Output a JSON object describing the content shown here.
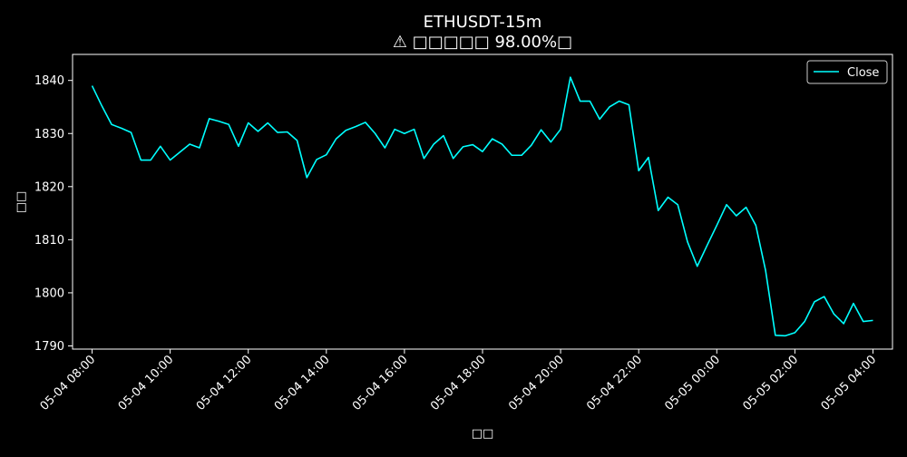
{
  "chart_data": {
    "type": "line",
    "title": "ETHUSDT-15m",
    "subtitle": "⚠ □□□□□ 98.00%□",
    "xlabel": "□□",
    "ylabel": "□□",
    "x_ticks": [
      "05-04 08:00",
      "05-04 10:00",
      "05-04 12:00",
      "05-04 14:00",
      "05-04 16:00",
      "05-04 18:00",
      "05-04 20:00",
      "05-04 22:00",
      "05-05 00:00",
      "05-05 02:00",
      "05-05 04:00"
    ],
    "y_ticks": [
      1790,
      1800,
      1810,
      1820,
      1830,
      1840
    ],
    "xlim_hours": [
      -0.5,
      20.5
    ],
    "ylim": [
      1789.4,
      1844.9
    ],
    "legend": "upper right",
    "grid": false,
    "colors": {
      "background": "#000000",
      "line": "#00ffff",
      "text": "#ffffff"
    },
    "series": [
      {
        "name": "Close",
        "color": "#00ffff",
        "x_start": "05-04 08:00",
        "x_step_minutes": 15,
        "values": [
          1839.0,
          1835.2,
          1831.7,
          1831.0,
          1830.2,
          1825.0,
          1825.0,
          1827.6,
          1825.0,
          1826.5,
          1828.0,
          1827.3,
          1832.8,
          1832.3,
          1831.7,
          1827.6,
          1832.0,
          1830.4,
          1832.0,
          1830.2,
          1830.3,
          1828.7,
          1821.7,
          1825.1,
          1826.0,
          1829.0,
          1830.6,
          1831.3,
          1832.1,
          1830.0,
          1827.3,
          1830.8,
          1830.0,
          1830.8,
          1825.3,
          1828.0,
          1829.6,
          1825.3,
          1827.5,
          1827.9,
          1826.6,
          1829.0,
          1828.0,
          1825.9,
          1825.9,
          1827.8,
          1830.7,
          1828.4,
          1830.8,
          1840.6,
          1836.1,
          1836.1,
          1832.7,
          1835.0,
          1836.1,
          1835.4,
          1823.0,
          1825.5,
          1815.5,
          1818.0,
          1816.6,
          1809.6,
          1805.0,
          1808.9,
          1812.7,
          1816.6,
          1814.5,
          1816.1,
          1812.7,
          1804.2,
          1792.0,
          1791.9,
          1792.5,
          1794.6,
          1798.3,
          1799.3,
          1796.0,
          1794.2,
          1798.0,
          1794.6,
          1794.8
        ]
      }
    ]
  }
}
